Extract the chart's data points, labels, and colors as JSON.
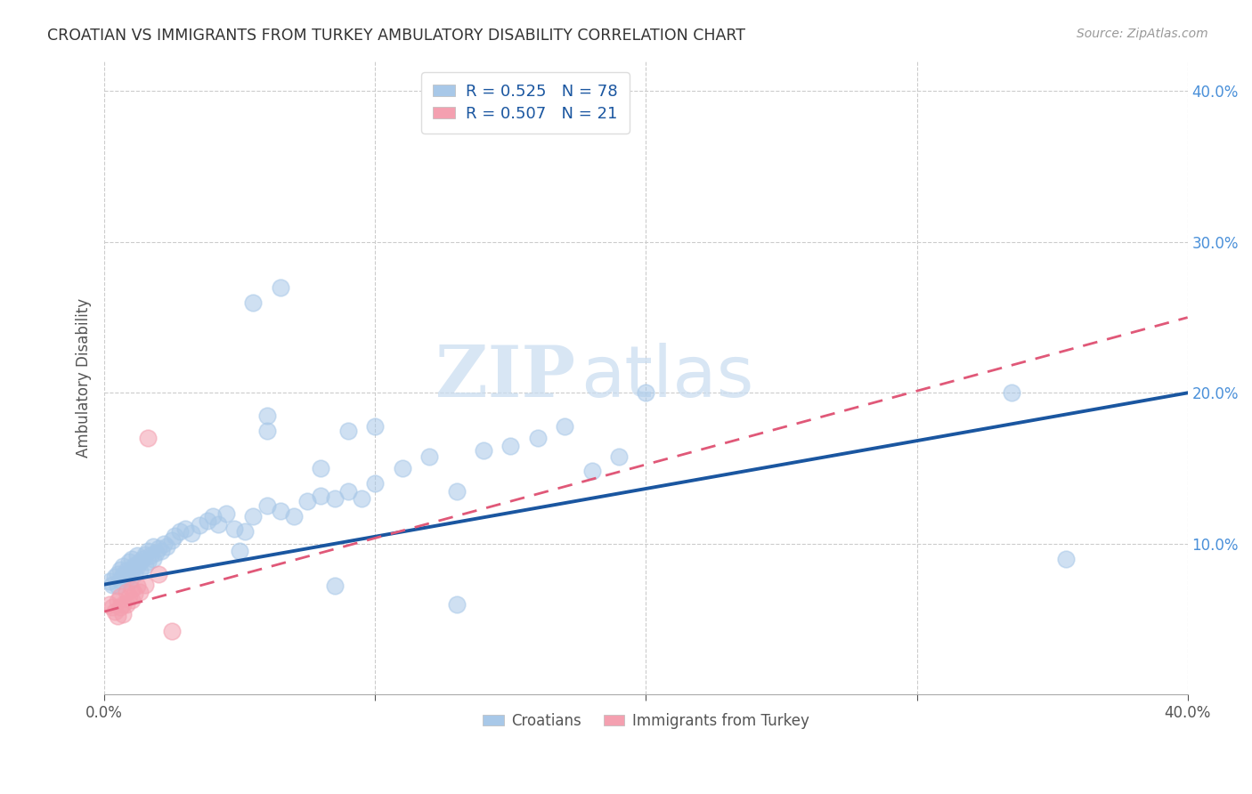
{
  "title": "CROATIAN VS IMMIGRANTS FROM TURKEY AMBULATORY DISABILITY CORRELATION CHART",
  "source": "Source: ZipAtlas.com",
  "ylabel": "Ambulatory Disability",
  "xlim": [
    0.0,
    0.4
  ],
  "ylim": [
    0.0,
    0.42
  ],
  "color_blue": "#A8C8E8",
  "color_pink": "#F4A0B0",
  "line_color_blue": "#1A56A0",
  "line_color_pink": "#E05878",
  "watermark_zip": "ZIP",
  "watermark_atlas": "atlas",
  "background_color": "#FFFFFF",
  "blue_line_x": [
    0.0,
    0.4
  ],
  "blue_line_y": [
    0.073,
    0.2
  ],
  "pink_line_x": [
    0.0,
    0.4
  ],
  "pink_line_y": [
    0.055,
    0.25
  ],
  "blue_points": [
    [
      0.002,
      0.075
    ],
    [
      0.003,
      0.073
    ],
    [
      0.004,
      0.078
    ],
    [
      0.005,
      0.08
    ],
    [
      0.005,
      0.072
    ],
    [
      0.006,
      0.083
    ],
    [
      0.006,
      0.076
    ],
    [
      0.007,
      0.085
    ],
    [
      0.007,
      0.079
    ],
    [
      0.008,
      0.082
    ],
    [
      0.008,
      0.077
    ],
    [
      0.009,
      0.088
    ],
    [
      0.009,
      0.075
    ],
    [
      0.01,
      0.09
    ],
    [
      0.01,
      0.083
    ],
    [
      0.011,
      0.086
    ],
    [
      0.011,
      0.08
    ],
    [
      0.012,
      0.092
    ],
    [
      0.012,
      0.085
    ],
    [
      0.013,
      0.088
    ],
    [
      0.013,
      0.082
    ],
    [
      0.014,
      0.09
    ],
    [
      0.015,
      0.093
    ],
    [
      0.015,
      0.086
    ],
    [
      0.016,
      0.095
    ],
    [
      0.016,
      0.088
    ],
    [
      0.017,
      0.092
    ],
    [
      0.018,
      0.098
    ],
    [
      0.018,
      0.09
    ],
    [
      0.019,
      0.094
    ],
    [
      0.02,
      0.097
    ],
    [
      0.021,
      0.095
    ],
    [
      0.022,
      0.1
    ],
    [
      0.023,
      0.098
    ],
    [
      0.025,
      0.102
    ],
    [
      0.026,
      0.105
    ],
    [
      0.028,
      0.108
    ],
    [
      0.03,
      0.11
    ],
    [
      0.032,
      0.107
    ],
    [
      0.035,
      0.112
    ],
    [
      0.038,
      0.115
    ],
    [
      0.04,
      0.118
    ],
    [
      0.042,
      0.113
    ],
    [
      0.045,
      0.12
    ],
    [
      0.048,
      0.11
    ],
    [
      0.05,
      0.095
    ],
    [
      0.052,
      0.108
    ],
    [
      0.055,
      0.118
    ],
    [
      0.06,
      0.125
    ],
    [
      0.065,
      0.122
    ],
    [
      0.07,
      0.118
    ],
    [
      0.075,
      0.128
    ],
    [
      0.08,
      0.132
    ],
    [
      0.085,
      0.13
    ],
    [
      0.09,
      0.135
    ],
    [
      0.095,
      0.13
    ],
    [
      0.1,
      0.14
    ],
    [
      0.11,
      0.15
    ],
    [
      0.12,
      0.158
    ],
    [
      0.13,
      0.135
    ],
    [
      0.14,
      0.162
    ],
    [
      0.15,
      0.165
    ],
    [
      0.16,
      0.17
    ],
    [
      0.17,
      0.178
    ],
    [
      0.18,
      0.148
    ],
    [
      0.19,
      0.158
    ],
    [
      0.2,
      0.2
    ],
    [
      0.055,
      0.26
    ],
    [
      0.065,
      0.27
    ],
    [
      0.08,
      0.15
    ],
    [
      0.09,
      0.175
    ],
    [
      0.1,
      0.178
    ],
    [
      0.06,
      0.175
    ],
    [
      0.13,
      0.06
    ],
    [
      0.06,
      0.185
    ],
    [
      0.085,
      0.072
    ],
    [
      0.335,
      0.2
    ],
    [
      0.355,
      0.09
    ]
  ],
  "pink_points": [
    [
      0.002,
      0.06
    ],
    [
      0.003,
      0.058
    ],
    [
      0.004,
      0.055
    ],
    [
      0.005,
      0.062
    ],
    [
      0.005,
      0.052
    ],
    [
      0.006,
      0.065
    ],
    [
      0.006,
      0.058
    ],
    [
      0.007,
      0.06
    ],
    [
      0.007,
      0.053
    ],
    [
      0.008,
      0.068
    ],
    [
      0.008,
      0.06
    ],
    [
      0.009,
      0.065
    ],
    [
      0.01,
      0.07
    ],
    [
      0.01,
      0.063
    ],
    [
      0.011,
      0.067
    ],
    [
      0.012,
      0.072
    ],
    [
      0.013,
      0.068
    ],
    [
      0.015,
      0.073
    ],
    [
      0.016,
      0.17
    ],
    [
      0.02,
      0.08
    ],
    [
      0.025,
      0.042
    ]
  ]
}
